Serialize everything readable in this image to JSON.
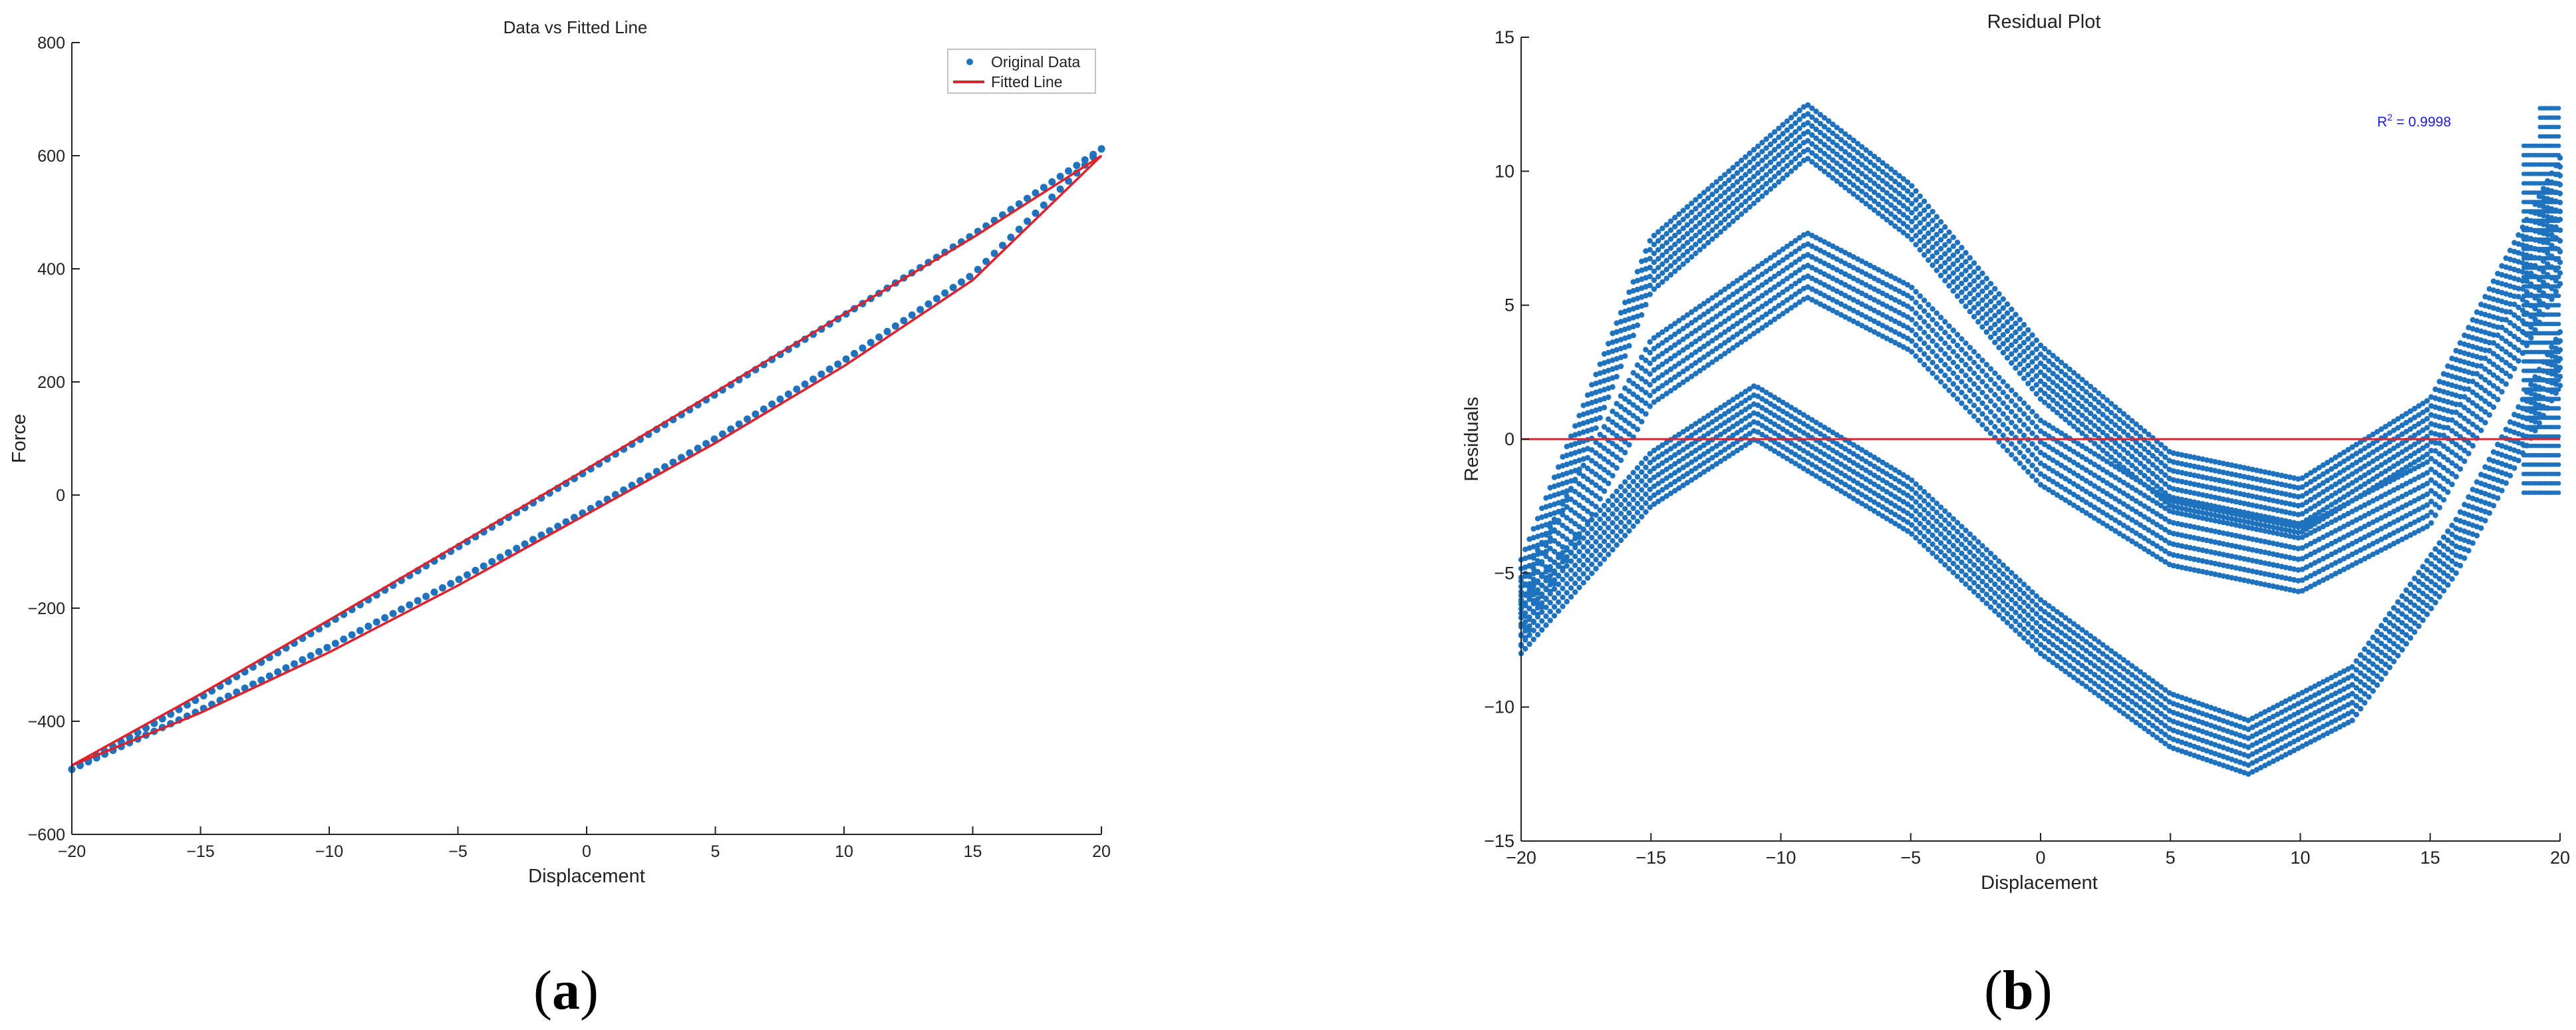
{
  "chart_data": [
    {
      "type": "scatter",
      "title": "Data vs Fitted Line",
      "xlabel": "Displacement",
      "ylabel": "Force",
      "xlim": [
        -20,
        20
      ],
      "ylim": [
        -600,
        800
      ],
      "xticks": [
        -20,
        -15,
        -10,
        -5,
        0,
        5,
        10,
        15,
        20
      ],
      "yticks": [
        -600,
        -400,
        -200,
        0,
        200,
        400,
        600,
        800
      ],
      "grid": false,
      "legend": {
        "position": "top-right",
        "entries": [
          "Original Data",
          "Fitted Line"
        ]
      },
      "series": [
        {
          "name": "Original Data",
          "kind": "scatter",
          "color": "#1f72bd",
          "description_points": {
            "upper_branch": [
              [
                -20,
                -485
              ],
              [
                -15,
                -358
              ],
              [
                -10,
                -226
              ],
              [
                -5,
                -92
              ],
              [
                0,
                42
              ],
              [
                5,
                178
              ],
              [
                10,
                318
              ],
              [
                15,
                460
              ],
              [
                20,
                612
              ]
            ],
            "lower_branch": [
              [
                -20,
                -485
              ],
              [
                -15,
                -380
              ],
              [
                -10,
                -268
              ],
              [
                -5,
                -150
              ],
              [
                0,
                -28
              ],
              [
                5,
                100
              ],
              [
                10,
                238
              ],
              [
                15,
                390
              ],
              [
                20,
                612
              ]
            ]
          }
        },
        {
          "name": "Fitted Line",
          "kind": "line",
          "color": "#e0202a",
          "description_points": {
            "upper_branch": [
              [
                -20,
                -478
              ],
              [
                -15,
                -352
              ],
              [
                -10,
                -221
              ],
              [
                -5,
                -88
              ],
              [
                0,
                46
              ],
              [
                5,
                182
              ],
              [
                10,
                320
              ],
              [
                15,
                455
              ],
              [
                20,
                600
              ]
            ],
            "lower_branch": [
              [
                -20,
                -478
              ],
              [
                -15,
                -385
              ],
              [
                -10,
                -278
              ],
              [
                -5,
                -160
              ],
              [
                0,
                -34
              ],
              [
                5,
                92
              ],
              [
                10,
                228
              ],
              [
                15,
                380
              ],
              [
                20,
                600
              ]
            ]
          }
        }
      ]
    },
    {
      "type": "scatter",
      "title": "Residual Plot",
      "xlabel": "Displacement",
      "ylabel": "Residuals",
      "xlim": [
        -20,
        20
      ],
      "ylim": [
        -15,
        15
      ],
      "xticks": [
        -20,
        -15,
        -10,
        -5,
        0,
        5,
        10,
        15,
        20
      ],
      "yticks": [
        -15,
        -10,
        -5,
        0,
        5,
        10,
        15
      ],
      "grid": false,
      "annotation": {
        "text_base": "R",
        "text_sup": "2",
        "text_rest": " = 0.9998"
      },
      "series": [
        {
          "name": "",
          "kind": "scatter",
          "color": "#1f72bd",
          "bands": [
            {
              "points": [
                [
                  -20,
                  -5.5
                ],
                [
                  -15,
                  6.5
                ],
                [
                  -9,
                  11.5
                ],
                [
                  -5,
                  8.5
                ],
                [
                  0,
                  2.5
                ],
                [
                  5,
                  -1.5
                ],
                [
                  10,
                  -2.5
                ],
                [
                  15,
                  0.5
                ],
                [
                  20,
                  9.5
                ]
              ],
              "spread": 1.0
            },
            {
              "points": [
                [
                  -20,
                  -6.5
                ],
                [
                  -15,
                  2.5
                ],
                [
                  -9,
                  6.5
                ],
                [
                  -5,
                  4.5
                ],
                [
                  0,
                  -0.5
                ],
                [
                  5,
                  -3.5
                ],
                [
                  10,
                  -4.5
                ],
                [
                  15,
                  -2.0
                ],
                [
                  20,
                  7.0
                ]
              ],
              "spread": 1.2
            },
            {
              "points": [
                [
                  -20,
                  -7.0
                ],
                [
                  -15,
                  -1.5
                ],
                [
                  -11,
                  1.0
                ],
                [
                  -5,
                  -2.5
                ],
                [
                  0,
                  -7.0
                ],
                [
                  5,
                  -10.5
                ],
                [
                  8,
                  -11.5
                ],
                [
                  12,
                  -9.5
                ],
                [
                  16,
                  -4.0
                ],
                [
                  20,
                  3.0
                ]
              ],
              "spread": 1.0
            }
          ]
        },
        {
          "name": "",
          "kind": "line",
          "color": "#e0202a",
          "values": [
            [
              -20,
              0
            ],
            [
              20,
              0
            ]
          ]
        }
      ]
    }
  ],
  "captions": [
    {
      "open": "(",
      "letter": "a",
      "close": ")"
    },
    {
      "open": "(",
      "letter": "b",
      "close": ")"
    }
  ]
}
